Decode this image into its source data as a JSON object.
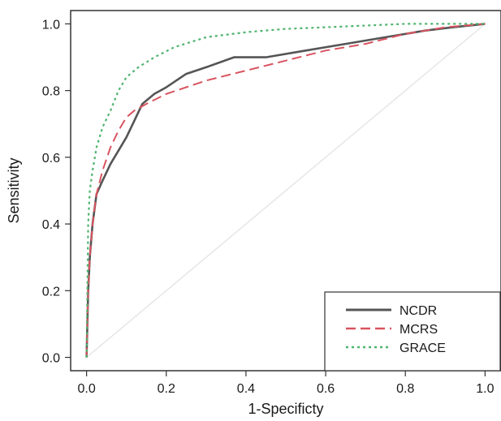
{
  "chart_data": {
    "type": "line",
    "title": "",
    "xlabel": "1-Specificty",
    "ylabel": "Sensitivity",
    "xlim": [
      -0.04,
      1.04
    ],
    "ylim": [
      -0.04,
      1.04
    ],
    "x_ticks": [
      0.0,
      0.2,
      0.4,
      0.6,
      0.8,
      1.0
    ],
    "y_ticks": [
      0.0,
      0.2,
      0.4,
      0.6,
      0.8,
      1.0
    ],
    "x_tick_labels": [
      "0.0",
      "0.2",
      "0.4",
      "0.6",
      "0.8",
      "1.0"
    ],
    "y_tick_labels": [
      "0.0",
      "0.2",
      "0.4",
      "0.6",
      "0.8",
      "1.0"
    ],
    "grid": false,
    "legend_position": "bottom-right",
    "reference_line": {
      "x": [
        0,
        1
      ],
      "y": [
        0,
        1
      ],
      "color": "#e6e6e6"
    },
    "series": [
      {
        "name": "NCDR",
        "color": "#555555",
        "style": "solid",
        "x": [
          0.0,
          0.004,
          0.008,
          0.015,
          0.025,
          0.04,
          0.06,
          0.08,
          0.1,
          0.12,
          0.14,
          0.17,
          0.2,
          0.25,
          0.3,
          0.37,
          0.45,
          0.55,
          0.65,
          0.75,
          0.85,
          0.92,
          1.0
        ],
        "y": [
          0.0,
          0.2,
          0.3,
          0.4,
          0.49,
          0.53,
          0.58,
          0.62,
          0.66,
          0.71,
          0.76,
          0.79,
          0.81,
          0.85,
          0.87,
          0.9,
          0.9,
          0.92,
          0.94,
          0.96,
          0.98,
          0.99,
          1.0
        ]
      },
      {
        "name": "MCRS",
        "color": "#d9535f",
        "style": "dashed",
        "x": [
          0.0,
          0.004,
          0.008,
          0.015,
          0.025,
          0.04,
          0.06,
          0.08,
          0.1,
          0.12,
          0.15,
          0.2,
          0.3,
          0.4,
          0.5,
          0.6,
          0.7,
          0.8,
          0.9,
          1.0
        ],
        "y": [
          0.0,
          0.2,
          0.3,
          0.4,
          0.49,
          0.56,
          0.63,
          0.68,
          0.72,
          0.74,
          0.76,
          0.79,
          0.83,
          0.86,
          0.89,
          0.92,
          0.94,
          0.97,
          0.99,
          1.0
        ]
      },
      {
        "name": "GRACE",
        "color": "#4fb36e",
        "style": "dotted",
        "x": [
          0.0,
          0.004,
          0.008,
          0.015,
          0.025,
          0.04,
          0.06,
          0.08,
          0.1,
          0.13,
          0.17,
          0.22,
          0.3,
          0.4,
          0.5,
          0.6,
          0.7,
          0.8,
          0.9,
          1.0
        ],
        "y": [
          0.0,
          0.4,
          0.5,
          0.56,
          0.63,
          0.69,
          0.74,
          0.8,
          0.84,
          0.87,
          0.9,
          0.93,
          0.96,
          0.975,
          0.985,
          0.99,
          0.995,
          1.0,
          1.0,
          1.0
        ]
      }
    ]
  }
}
